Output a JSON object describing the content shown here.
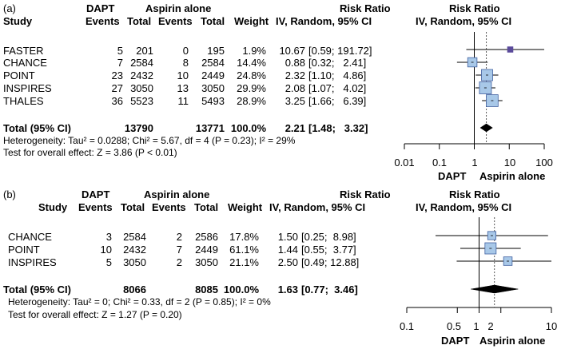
{
  "panels": [
    {
      "label": "(a)",
      "col_headers": {
        "group1": "DAPT",
        "group2": "Aspirin alone",
        "study": "Study",
        "events1": "Events",
        "total1": "Total",
        "events2": "Events",
        "total2": "Total",
        "weight": "Weight",
        "rr_title": "Risk Ratio",
        "rr_sub": "IV, Random, 95% CI",
        "plot_title": "Risk Ratio",
        "plot_sub": "IV, Random, 95% CI"
      },
      "studies": [
        {
          "name": "FASTER",
          "e1": "5",
          "t1": "201",
          "e2": "0",
          "t2": "195",
          "weight": "1.9%",
          "rr": "10.67",
          "ci": "[0.59; 191.72]"
        },
        {
          "name": "CHANCE",
          "e1": "7",
          "t1": "2584",
          "e2": "8",
          "t2": "2584",
          "weight": "14.4%",
          "rr": "0.88",
          "ci": "[0.32;   2.41]"
        },
        {
          "name": "POINT",
          "e1": "23",
          "t1": "2432",
          "e2": "10",
          "t2": "2449",
          "weight": "24.8%",
          "rr": "2.32",
          "ci": "[1.10;   4.86]"
        },
        {
          "name": "INSPIRES",
          "e1": "27",
          "t1": "3050",
          "e2": "13",
          "t2": "3050",
          "weight": "29.9%",
          "rr": "2.08",
          "ci": "[1.07;   4.02]"
        },
        {
          "name": "THALES",
          "e1": "36",
          "t1": "5523",
          "e2": "11",
          "t2": "5493",
          "weight": "28.9%",
          "rr": "3.25",
          "ci": "[1.66;   6.39]"
        }
      ],
      "total": {
        "label": "Total (95% CI)",
        "t1": "13790",
        "t2": "13771",
        "weight": "100.0%",
        "rr": "2.21",
        "ci": "[1.48;   3.32]"
      },
      "heterogeneity": "Heterogeneity: Tau² = 0.0288; Chi² = 5.67, df = 4 (P = 0.23); I² = 29%",
      "overall_effect": "Test for overall effect: Z = 3.86 (P < 0.01)",
      "axis_ticks": [
        "0.01",
        "0.1",
        "1",
        "10",
        "100"
      ],
      "favours_left": "DAPT",
      "favours_right": "Aspirin alone"
    },
    {
      "label": "(b)",
      "col_headers": {
        "group1": "DAPT",
        "group2": "Aspirin alone",
        "study": "Study",
        "events1": "Events",
        "total1": "Total",
        "events2": "Events",
        "total2": "Total",
        "weight": "Weight",
        "rr_title": "Risk Ratio",
        "rr_sub": "IV, Random, 95% CI",
        "plot_title": "Risk Ratio",
        "plot_sub": "IV, Random, 95% CI"
      },
      "studies": [
        {
          "name": "CHANCE",
          "e1": "3",
          "t1": "2584",
          "e2": "2",
          "t2": "2586",
          "weight": "17.8%",
          "rr": "1.50",
          "ci": "[0.25;  8.98]"
        },
        {
          "name": "POINT",
          "e1": "10",
          "t1": "2432",
          "e2": "7",
          "t2": "2449",
          "weight": "61.1%",
          "rr": "1.44",
          "ci": "[0.55;  3.77]"
        },
        {
          "name": "INSPIRES",
          "e1": "5",
          "t1": "3050",
          "e2": "2",
          "t2": "3050",
          "weight": "21.1%",
          "rr": "2.50",
          "ci": "[0.49; 12.88]"
        }
      ],
      "total": {
        "label": "Total (95% CI)",
        "t1": "8066",
        "t2": "8085",
        "weight": "100.0%",
        "rr": "1.63",
        "ci": "[0.77;  3.46]"
      },
      "heterogeneity": "Heterogeneity: Tau² = 0; Chi² = 0.33, df = 2 (P = 0.85); I² = 0%",
      "overall_effect": "Test for overall effect: Z = 1.27 (P = 0.20)",
      "axis_ticks": [
        "0.1",
        "0.5",
        "1",
        "2",
        "10"
      ],
      "favours_left": "DAPT",
      "favours_right": "Aspirin alone"
    }
  ],
  "chart_data": [
    {
      "type": "forest",
      "scale": "log",
      "xlim": [
        0.01,
        100
      ],
      "ticks": [
        0.01,
        0.1,
        1,
        10,
        100
      ],
      "reference_line": 1,
      "pooled_line": 2.21,
      "studies": [
        {
          "name": "FASTER",
          "rr": 10.67,
          "lo": 0.59,
          "hi": 191.72,
          "weight": 1.9
        },
        {
          "name": "CHANCE",
          "rr": 0.88,
          "lo": 0.32,
          "hi": 2.41,
          "weight": 14.4
        },
        {
          "name": "POINT",
          "rr": 2.32,
          "lo": 1.1,
          "hi": 4.86,
          "weight": 24.8
        },
        {
          "name": "INSPIRES",
          "rr": 2.08,
          "lo": 1.07,
          "hi": 4.02,
          "weight": 29.9
        },
        {
          "name": "THALES",
          "rr": 3.25,
          "lo": 1.66,
          "hi": 6.39,
          "weight": 28.9
        }
      ],
      "pooled": {
        "rr": 2.21,
        "lo": 1.48,
        "hi": 3.32
      },
      "marker_color": "#a8c8e8",
      "marker_border": "#4060a0",
      "small_marker_color": "#5a4a9a"
    },
    {
      "type": "forest",
      "scale": "log",
      "xlim": [
        0.1,
        10
      ],
      "ticks": [
        0.1,
        0.5,
        1,
        2,
        10
      ],
      "reference_line": 1,
      "pooled_line": 1.63,
      "studies": [
        {
          "name": "CHANCE",
          "rr": 1.5,
          "lo": 0.25,
          "hi": 8.98,
          "weight": 17.8
        },
        {
          "name": "POINT",
          "rr": 1.44,
          "lo": 0.55,
          "hi": 3.77,
          "weight": 61.1
        },
        {
          "name": "INSPIRES",
          "rr": 2.5,
          "lo": 0.49,
          "hi": 12.88,
          "weight": 21.1
        }
      ],
      "pooled": {
        "rr": 1.63,
        "lo": 0.77,
        "hi": 3.46
      },
      "marker_color": "#a8c8e8",
      "marker_border": "#4060a0",
      "small_marker_color": "#5a4a9a"
    }
  ]
}
